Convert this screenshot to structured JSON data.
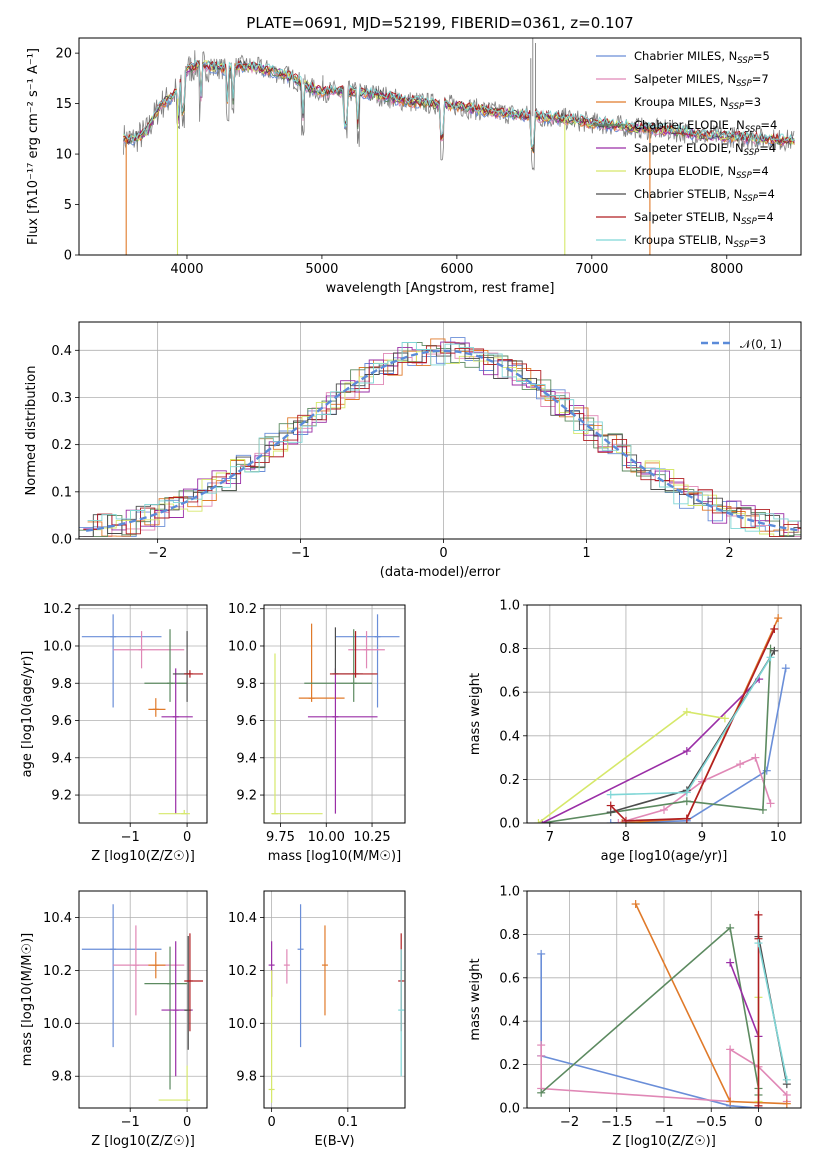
{
  "figure": {
    "title": "PLATE=0691, MJD=52199, FIBERID=0361, z=0.107"
  },
  "legend_series": [
    {
      "name": "Chabrier MILES, N",
      "sub": "SSP",
      "suffix": "=5",
      "color": "#6a8ed8"
    },
    {
      "name": "Salpeter MILES, N",
      "sub": "SSP",
      "suffix": "=7",
      "color": "#e088b6"
    },
    {
      "name": "Kroupa MILES, N",
      "sub": "SSP",
      "suffix": "=3",
      "color": "#e07a2a"
    },
    {
      "name": "Chabrier ELODIE, N",
      "sub": "SSP",
      "suffix": "=4",
      "color": "#5c8a60"
    },
    {
      "name": "Salpeter ELODIE, N",
      "sub": "SSP",
      "suffix": "=4",
      "color": "#9a2ea6"
    },
    {
      "name": "Kroupa ELODIE, N",
      "sub": "SSP",
      "suffix": "=4",
      "color": "#d6e86a"
    },
    {
      "name": "Chabrier STELIB, N",
      "sub": "SSP",
      "suffix": "=4",
      "color": "#4c4c4c"
    },
    {
      "name": "Salpeter STELIB, N",
      "sub": "SSP",
      "suffix": "=4",
      "color": "#b01e22"
    },
    {
      "name": "Kroupa STELIB, N",
      "sub": "SSP",
      "suffix": "=3",
      "color": "#7fd6d6"
    }
  ],
  "chart_data": [
    {
      "type": "line",
      "panel": "spectrum",
      "xlabel": "wavelength [Angstrom, rest frame]",
      "ylabel": "Flux [fλ10⁻¹⁷ erg cm⁻² s⁻¹ A⁻¹]",
      "xlim": [
        3200,
        8550
      ],
      "ylim": [
        0,
        21.5
      ],
      "xticks": [
        4000,
        5000,
        6000,
        7000,
        8000
      ],
      "yticks": [
        0,
        5,
        10,
        15,
        20
      ],
      "data_color": "#808080",
      "model_x": [
        3500,
        3600,
        3700,
        3800,
        3900,
        4000,
        4100,
        4200,
        4300,
        4400,
        4500,
        4600,
        4700,
        4800,
        4900,
        5000,
        5200,
        5400,
        5600,
        5800,
        6000,
        6200,
        6400,
        6600,
        6800,
        7000,
        7200,
        7400,
        7600,
        7800,
        8000,
        8200,
        8400,
        8550
      ],
      "model_y": [
        11.6,
        11.4,
        12.2,
        14.8,
        15.8,
        18.4,
        18.9,
        18.6,
        18.4,
        18.7,
        18.6,
        18.3,
        18.0,
        17.4,
        16.6,
        16.2,
        16.2,
        15.9,
        15.3,
        15.0,
        14.8,
        14.3,
        14.0,
        13.7,
        13.5,
        13.1,
        12.8,
        12.5,
        12.3,
        11.9,
        11.7,
        11.6,
        11.4,
        11.3
      ]
    },
    {
      "type": "line",
      "panel": "residual histogram",
      "xlabel": "(data-model)/error",
      "ylabel": "Normed distribution",
      "xlim": [
        -2.55,
        2.5
      ],
      "ylim": [
        0,
        0.46
      ],
      "xticks": [
        -2,
        -1,
        0,
        1,
        2
      ],
      "yticks": [
        0.0,
        0.1,
        0.2,
        0.3,
        0.4
      ],
      "legend": "𝒩(0, 1)",
      "reference_curve": "normal(0,1)",
      "reference_color": "#5b8bd9"
    },
    {
      "type": "scatter",
      "panel": "age vs Z",
      "xlabel": "Z [log10(Z/Z☉)]",
      "ylabel": "age [log10(age/yr)]",
      "xlim": [
        -1.9,
        0.35
      ],
      "ylim": [
        9.05,
        10.22
      ],
      "xticks": [
        -1,
        0
      ],
      "yticks": [
        9.2,
        9.4,
        9.6,
        9.8,
        10.0,
        10.2
      ],
      "points": [
        {
          "x": -1.3,
          "y": 10.05,
          "xlo": -1.85,
          "xhi": -0.45,
          "ylo": 9.67,
          "yhi": 10.17
        },
        {
          "x": -0.8,
          "y": 9.98,
          "xlo": -1.3,
          "xhi": -0.05,
          "ylo": 9.88,
          "yhi": 10.08
        },
        {
          "x": -0.55,
          "y": 9.66,
          "xlo": -0.68,
          "xhi": -0.38,
          "ylo": 9.62,
          "yhi": 9.72
        },
        {
          "x": -0.3,
          "y": 9.8,
          "xlo": -0.75,
          "xhi": 0.0,
          "ylo": 9.7,
          "yhi": 10.09
        },
        {
          "x": -0.2,
          "y": 9.62,
          "xlo": -0.45,
          "xhi": 0.1,
          "ylo": 9.1,
          "yhi": 9.88
        },
        {
          "x": -0.05,
          "y": 9.1,
          "xlo": -0.5,
          "xhi": 0.05,
          "ylo": 9.1,
          "yhi": 9.12
        },
        {
          "x": 0.0,
          "y": 9.85,
          "xlo": -0.25,
          "xhi": 0.05,
          "ylo": 9.7,
          "yhi": 10.08
        },
        {
          "x": 0.05,
          "y": 9.85,
          "xlo": -0.05,
          "xhi": 0.28,
          "ylo": 9.83,
          "yhi": 9.87
        }
      ]
    },
    {
      "type": "scatter",
      "panel": "age vs mass",
      "xlabel": "mass [log10(M/M☉)]",
      "ylabel": "",
      "xlim": [
        9.66,
        10.43
      ],
      "ylim": [
        9.05,
        10.22
      ],
      "xticks": [
        9.75,
        10.0,
        10.25
      ],
      "xtick_labels": [
        "9.75",
        "10.00",
        "10.25"
      ],
      "yticks": [
        9.2,
        9.4,
        9.6,
        9.8,
        10.0,
        10.2
      ],
      "points": [
        {
          "x": 10.28,
          "y": 10.05,
          "xlo": 10.05,
          "xhi": 10.4,
          "ylo": 9.67,
          "yhi": 10.17
        },
        {
          "x": 10.22,
          "y": 9.98,
          "xlo": 10.12,
          "xhi": 10.32,
          "ylo": 9.88,
          "yhi": 10.08
        },
        {
          "x": 9.92,
          "y": 9.72,
          "xlo": 9.85,
          "xhi": 10.1,
          "ylo": 9.7,
          "yhi": 10.12
        },
        {
          "x": 10.15,
          "y": 9.8,
          "xlo": 9.88,
          "xhi": 10.25,
          "ylo": 9.7,
          "yhi": 10.09
        },
        {
          "x": 10.05,
          "y": 9.62,
          "xlo": 9.9,
          "xhi": 10.28,
          "ylo": 9.1,
          "yhi": 9.88
        },
        {
          "x": 9.72,
          "y": 9.1,
          "xlo": 9.7,
          "xhi": 9.98,
          "ylo": 9.1,
          "yhi": 9.96
        },
        {
          "x": 10.05,
          "y": 9.85,
          "xlo": 10.05,
          "xhi": 10.2,
          "ylo": 9.85,
          "yhi": 10.1
        },
        {
          "x": 10.16,
          "y": 9.85,
          "xlo": 10.02,
          "xhi": 10.28,
          "ylo": 9.83,
          "yhi": 10.08
        }
      ]
    },
    {
      "type": "line",
      "panel": "cumulative mass weight vs age",
      "xlabel": "age [log10(age/yr)]",
      "ylabel": "mass weight",
      "xlim": [
        6.7,
        10.3
      ],
      "ylim": [
        0,
        1
      ],
      "xticks": [
        7,
        8,
        9,
        10
      ],
      "yticks": [
        0.0,
        0.2,
        0.4,
        0.6,
        0.8,
        1.0
      ],
      "series": [
        {
          "color": "#6a8ed8",
          "x": [
            7.8,
            8.8,
            9.85,
            10.1
          ],
          "y": [
            0.0,
            0.01,
            0.24,
            0.71
          ]
        },
        {
          "color": "#e088b6",
          "x": [
            7.9,
            8.5,
            9.0,
            9.5,
            9.7,
            9.9
          ],
          "y": [
            0.0,
            0.06,
            0.19,
            0.27,
            0.3,
            0.09
          ]
        },
        {
          "color": "#e07a2a",
          "x": [
            7.95,
            8.8,
            10.0
          ],
          "y": [
            0.0,
            0.02,
            0.94
          ]
        },
        {
          "color": "#5c8a60",
          "x": [
            6.9,
            8.8,
            9.8,
            9.9
          ],
          "y": [
            0.0,
            0.1,
            0.06,
            0.8
          ]
        },
        {
          "color": "#9a2ea6",
          "x": [
            6.9,
            8.8,
            9.75
          ],
          "y": [
            0.0,
            0.33,
            0.66
          ]
        },
        {
          "color": "#d6e86a",
          "x": [
            6.85,
            8.8,
            9.3
          ],
          "y": [
            0.0,
            0.51,
            0.48
          ]
        },
        {
          "color": "#4c4c4c",
          "x": [
            7.8,
            8.8,
            9.95
          ],
          "y": [
            0.05,
            0.15,
            0.79
          ]
        },
        {
          "color": "#b01e22",
          "x": [
            7.8,
            8.0,
            8.8,
            9.95
          ],
          "y": [
            0.08,
            0.01,
            0.02,
            0.89
          ]
        },
        {
          "color": "#7fd6d6",
          "x": [
            7.8,
            8.8,
            9.9
          ],
          "y": [
            0.13,
            0.14,
            0.76
          ]
        }
      ]
    },
    {
      "type": "scatter",
      "panel": "mass vs Z",
      "xlabel": "Z [log10(Z/Z☉)]",
      "ylabel": "mass [log10(M/M☉)]",
      "xlim": [
        -1.9,
        0.35
      ],
      "ylim": [
        9.68,
        10.5
      ],
      "xticks": [
        -1,
        0
      ],
      "yticks": [
        9.8,
        10.0,
        10.2,
        10.4
      ],
      "points": [
        {
          "x": -1.3,
          "y": 10.28,
          "xlo": -1.85,
          "xhi": -0.45,
          "ylo": 9.91,
          "yhi": 10.45
        },
        {
          "x": -0.9,
          "y": 10.22,
          "xlo": -1.3,
          "xhi": -0.05,
          "ylo": 10.03,
          "yhi": 10.37
        },
        {
          "x": -0.55,
          "y": 10.22,
          "xlo": -0.68,
          "xhi": -0.38,
          "ylo": 10.17,
          "yhi": 10.27
        },
        {
          "x": -0.3,
          "y": 10.15,
          "xlo": -0.75,
          "xhi": 0.0,
          "ylo": 9.75,
          "yhi": 10.29
        },
        {
          "x": -0.2,
          "y": 10.05,
          "xlo": -0.45,
          "xhi": 0.1,
          "ylo": 9.8,
          "yhi": 10.31
        },
        {
          "x": 0.0,
          "y": 9.71,
          "xlo": -0.5,
          "xhi": 0.05,
          "ylo": 9.71,
          "yhi": 9.84
        },
        {
          "x": 0.02,
          "y": 10.05,
          "xlo": -0.05,
          "xhi": 0.05,
          "ylo": 9.9,
          "yhi": 10.33
        },
        {
          "x": 0.05,
          "y": 10.16,
          "xlo": -0.05,
          "xhi": 0.28,
          "ylo": 9.97,
          "yhi": 10.34
        }
      ]
    },
    {
      "type": "scatter",
      "panel": "mass vs E(B-V)",
      "xlabel": "E(B-V)",
      "ylabel": "",
      "xlim": [
        -0.01,
        0.175
      ],
      "ylim": [
        9.68,
        10.5
      ],
      "xticks": [
        0.0,
        0.1
      ],
      "yticks": [
        9.8,
        10.0,
        10.2,
        10.4
      ],
      "points": [
        {
          "x": 0.038,
          "y": 10.28,
          "ylo": 9.91,
          "yhi": 10.45,
          "color": "#6a8ed8"
        },
        {
          "x": 0.07,
          "y": 10.22,
          "ylo": 10.03,
          "yhi": 10.37,
          "color": "#e07a2a"
        },
        {
          "x": 0.02,
          "y": 10.22,
          "ylo": 10.15,
          "yhi": 10.28,
          "color": "#e088b6"
        },
        {
          "x": 0.0,
          "y": 10.22,
          "ylo": 10.1,
          "yhi": 10.31,
          "color": "#9a2ea6"
        },
        {
          "x": 0.0,
          "y": 9.75,
          "ylo": 9.7,
          "yhi": 10.2,
          "color": "#d6e86a"
        },
        {
          "x": 0.17,
          "y": 10.16,
          "ylo": 9.97,
          "yhi": 10.34,
          "color": "#b01e22"
        },
        {
          "x": 0.17,
          "y": 10.05,
          "ylo": 9.8,
          "yhi": 10.28,
          "color": "#7fd6d6"
        }
      ]
    },
    {
      "type": "line",
      "panel": "mass weight vs Z",
      "xlabel": "Z [log10(Z/Z☉)]",
      "ylabel": "mass weight",
      "xlim": [
        -2.45,
        0.45
      ],
      "ylim": [
        0,
        1
      ],
      "xticks": [
        -2.0,
        -1.5,
        -1.0,
        -0.5,
        0.0
      ],
      "yticks": [
        0.0,
        0.2,
        0.4,
        0.6,
        0.8,
        1.0
      ],
      "series": [
        {
          "color": "#6a8ed8",
          "x": [
            -2.3,
            -2.3,
            -0.3,
            0.0,
            0.0
          ],
          "y": [
            0.71,
            0.24,
            0.01,
            0.0,
            0.0
          ]
        },
        {
          "color": "#e088b6",
          "x": [
            -2.3,
            -2.3,
            -2.3,
            -0.3,
            -0.3,
            0.0,
            0.3,
            0.3
          ],
          "y": [
            0.29,
            0.24,
            0.09,
            0.03,
            0.27,
            0.19,
            0.06,
            0.03
          ]
        },
        {
          "color": "#e07a2a",
          "x": [
            -1.3,
            -0.3,
            0.3
          ],
          "y": [
            0.94,
            0.03,
            0.02
          ]
        },
        {
          "color": "#5c8a60",
          "x": [
            -2.3,
            -0.3,
            0.0,
            0.0
          ],
          "y": [
            0.07,
            0.83,
            0.09,
            0.06
          ]
        },
        {
          "color": "#9a2ea6",
          "x": [
            -0.3,
            0.0
          ],
          "y": [
            0.67,
            0.33
          ]
        },
        {
          "color": "#d6e86a",
          "x": [
            0.0,
            0.0
          ],
          "y": [
            0.51,
            0.03
          ]
        },
        {
          "color": "#4c4c4c",
          "x": [
            0.0,
            0.3
          ],
          "y": [
            0.79,
            0.11
          ]
        },
        {
          "color": "#b01e22",
          "x": [
            0.0,
            0.0,
            0.0
          ],
          "y": [
            0.89,
            0.78,
            0.01
          ]
        },
        {
          "color": "#7fd6d6",
          "x": [
            0.0,
            0.3
          ],
          "y": [
            0.76,
            0.13
          ]
        }
      ]
    }
  ]
}
